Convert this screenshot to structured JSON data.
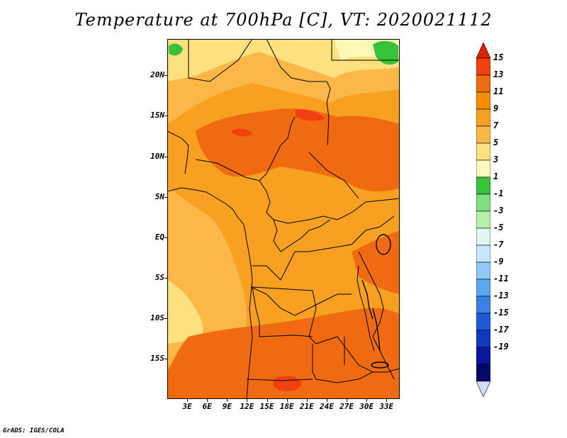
{
  "title": "Temperature at 700hPa [C], VT: 2020021112",
  "credit": "GrADS: IGES/COLA",
  "map": {
    "variable": "Temperature at 700hPa",
    "units": "C",
    "valid_time": "2020021112",
    "lon_range": [
      0,
      35
    ],
    "lat_range": [
      -20,
      24.5
    ],
    "lat_ticks": [
      "20N",
      "15N",
      "10N",
      "5N",
      "EQ",
      "5S",
      "10S",
      "15S"
    ],
    "lat_tick_values": [
      20,
      15,
      10,
      5,
      0,
      -5,
      -10,
      -15
    ],
    "lon_ticks": [
      "3E",
      "6E",
      "9E",
      "12E",
      "15E",
      "18E",
      "21E",
      "24E",
      "27E",
      "30E",
      "33E"
    ],
    "lon_tick_values": [
      3,
      6,
      9,
      12,
      15,
      18,
      21,
      24,
      27,
      30,
      33
    ]
  },
  "colorbar": {
    "labels": [
      "15",
      "13",
      "11",
      "9",
      "7",
      "5",
      "3",
      "1",
      "-1",
      "-3",
      "-5",
      "-7",
      "-9",
      "-11",
      "-13",
      "-15",
      "-17",
      "-19"
    ],
    "colors_top_to_bottom": [
      "#dd2200",
      "#f04010",
      "#f06a10",
      "#f88c00",
      "#f8a020",
      "#fbb848",
      "#fde080",
      "#fdf8b8",
      "#38c238",
      "#80e080",
      "#b8f0b0",
      "#e0f8f4",
      "#c8e8fc",
      "#90c8f8",
      "#5aa8f0",
      "#3a80e8",
      "#1e5ad8",
      "#1238c0",
      "#0a18a0",
      "#00086a",
      "#d8d8f8"
    ]
  }
}
